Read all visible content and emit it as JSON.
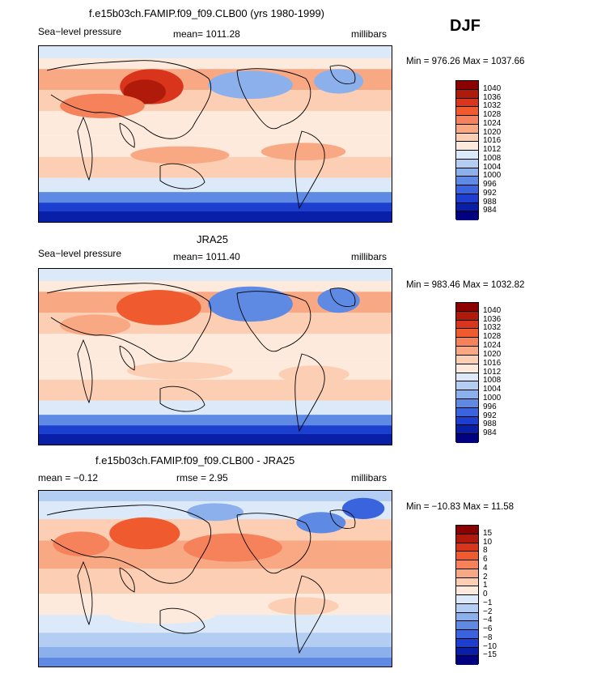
{
  "season": "DJF",
  "units": "millibars",
  "chart_data": [
    {
      "type": "heatmap",
      "title": "f.e15b03ch.FAMIP.f09_f09.CLB00 (yrs 1980-1999)",
      "left_label": "Sea−level pressure",
      "mean_label": "mean= 1011.28",
      "units": "millibars",
      "minmax": "Min = 976.26 Max = 1037.66",
      "mean": 1011.28,
      "min": 976.26,
      "max": 1037.66,
      "colorbar_levels": [
        "1040",
        "1036",
        "1032",
        "1028",
        "1024",
        "1020",
        "1016",
        "1012",
        "1008",
        "1004",
        "1000",
        "996",
        "992",
        "988",
        "984"
      ]
    },
    {
      "type": "heatmap",
      "title": "JRA25",
      "left_label": "Sea−level pressure",
      "mean_label": "mean= 1011.40",
      "units": "millibars",
      "minmax": "Min = 983.46 Max = 1032.82",
      "mean": 1011.4,
      "min": 983.46,
      "max": 1032.82,
      "colorbar_levels": [
        "1040",
        "1036",
        "1032",
        "1028",
        "1024",
        "1020",
        "1016",
        "1012",
        "1008",
        "1004",
        "1000",
        "996",
        "992",
        "988",
        "984"
      ]
    },
    {
      "type": "heatmap",
      "title": "f.e15b03ch.FAMIP.f09_f09.CLB00 - JRA25",
      "left_label": "mean =  −0.12",
      "mean_label": "rmse =   2.95",
      "units": "millibars",
      "minmax": "Min = −10.83 Max =  11.58",
      "mean": -0.12,
      "rmse": 2.95,
      "min": -10.83,
      "max": 11.58,
      "colorbar_levels": [
        "15",
        "10",
        "8",
        "6",
        "4",
        "2",
        "1",
        "0",
        "−1",
        "−2",
        "−4",
        "−6",
        "−8",
        "−10",
        "−15"
      ]
    }
  ],
  "palette": [
    "#8b0000",
    "#b01a0a",
    "#d9341c",
    "#ef5a2e",
    "#f5825a",
    "#f9a884",
    "#fccfb4",
    "#fdeadc",
    "#dce9f8",
    "#b4cdf2",
    "#8cb0ec",
    "#5f8ae4",
    "#3a63de",
    "#1d3fd0",
    "#0a1fa8",
    "#000080"
  ]
}
